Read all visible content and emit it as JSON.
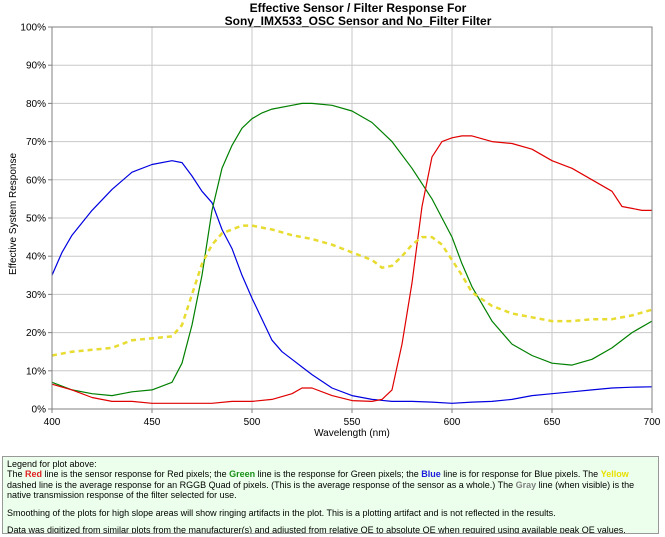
{
  "chart_data": {
    "type": "line",
    "title": [
      "Effective Sensor / Filter Response For",
      "Sony_IMX533_OSC Sensor and No_Filter Filter"
    ],
    "xlabel": "Wavelength (nm)",
    "ylabel": "Effective System Response",
    "xlim": [
      400,
      700
    ],
    "ylim": [
      0,
      100
    ],
    "x_ticks": [
      400,
      450,
      500,
      550,
      600,
      650,
      700
    ],
    "y_ticks": [
      "0%",
      "10%",
      "20%",
      "30%",
      "40%",
      "50%",
      "60%",
      "70%",
      "80%",
      "90%",
      "100%"
    ],
    "grid": true,
    "series": [
      {
        "color": "#0000e0",
        "style": "solid",
        "x": [
          400,
          405,
          410,
          420,
          430,
          440,
          450,
          460,
          465,
          470,
          475,
          480,
          485,
          490,
          495,
          500,
          505,
          510,
          515,
          520,
          525,
          530,
          540,
          550,
          560,
          570,
          580,
          590,
          600,
          610,
          620,
          630,
          640,
          650,
          660,
          670,
          680,
          690,
          700
        ],
        "y": [
          35,
          41,
          45.5,
          52,
          57.5,
          62,
          64,
          65,
          64.5,
          61,
          57,
          54,
          47,
          42,
          35,
          29,
          23.5,
          18,
          15,
          13,
          11,
          9,
          5.5,
          3.5,
          2.5,
          2,
          2,
          1.8,
          1.5,
          1.8,
          2,
          2.5,
          3.5,
          4,
          4.5,
          5,
          5.5,
          5.7,
          5.8
        ]
      },
      {
        "color": "#008000",
        "style": "solid",
        "x": [
          400,
          410,
          420,
          430,
          440,
          450,
          460,
          465,
          470,
          475,
          480,
          485,
          490,
          495,
          500,
          505,
          510,
          520,
          525,
          530,
          540,
          550,
          560,
          570,
          580,
          590,
          600,
          605,
          610,
          620,
          630,
          640,
          650,
          660,
          670,
          680,
          690,
          700
        ],
        "y": [
          7,
          5,
          4,
          3.5,
          4.5,
          5,
          7,
          12,
          22,
          35,
          52,
          63,
          69,
          73.5,
          76,
          77.5,
          78.5,
          79.5,
          80,
          80,
          79.5,
          78,
          75,
          70,
          63,
          55,
          45,
          38,
          32,
          23,
          17,
          14,
          12,
          11.5,
          13,
          16,
          20,
          23
        ]
      },
      {
        "color": "#e00000",
        "style": "solid",
        "x": [
          400,
          410,
          420,
          430,
          440,
          450,
          460,
          470,
          480,
          490,
          500,
          510,
          520,
          525,
          530,
          540,
          550,
          560,
          565,
          570,
          575,
          580,
          585,
          590,
          595,
          600,
          605,
          610,
          620,
          630,
          640,
          650,
          660,
          670,
          680,
          685,
          690,
          695,
          700
        ],
        "y": [
          6.5,
          5,
          3,
          2,
          2,
          1.5,
          1.5,
          1.5,
          1.5,
          2,
          2,
          2.5,
          4,
          5.5,
          5.5,
          3.5,
          2.2,
          2,
          2.5,
          5,
          17,
          33,
          53,
          66,
          70,
          71,
          71.5,
          71.5,
          70,
          69.5,
          68,
          65,
          63,
          60,
          57,
          53,
          52.5,
          52,
          52
        ]
      },
      {
        "color": "#e8dc30",
        "style": "dashed",
        "x": [
          400,
          410,
          420,
          430,
          440,
          450,
          460,
          465,
          470,
          475,
          480,
          485,
          490,
          495,
          500,
          505,
          510,
          520,
          530,
          540,
          550,
          560,
          565,
          570,
          575,
          580,
          585,
          590,
          595,
          600,
          605,
          610,
          620,
          630,
          640,
          650,
          660,
          670,
          680,
          690,
          700
        ],
        "y": [
          14,
          15,
          15.5,
          16,
          18,
          18.5,
          19,
          22,
          30,
          38,
          43,
          46,
          47,
          48,
          48,
          47.5,
          47,
          45.5,
          44.5,
          43,
          41,
          39,
          37,
          37.5,
          40,
          43,
          45,
          45,
          43,
          39,
          35,
          30.5,
          27,
          25,
          24,
          23,
          23,
          23.5,
          23.5,
          24.5,
          26
        ]
      }
    ]
  },
  "legend": {
    "heading": "Legend for plot above:",
    "s1_pre": "The ",
    "s1_red": "Red",
    "s1_mid1": " line is the sensor response for Red pixels; the ",
    "s1_green": "Green",
    "s1_mid2": " line is the response for Green pixels; the ",
    "s1_blue": "Blue",
    "s1_mid3": " line is for response for Blue pixels. The ",
    "s1_yellow": "Yellow",
    "s1_mid4": " dashed line is the average response for an RGGB Quad of pixels. (This is the average response of the sensor as a whole.) The ",
    "s1_gray": "Gray",
    "s1_post": " line (when visible) is the native transmission response of the filter selected for use.",
    "p2": "Smoothing of the plots for high slope areas will show ringing artifacts in the plot. This is a plotting artifact and is not reflected in the results.",
    "p3": "Data was digitized from similar plots from the manufacturer(s) and adjusted from relative QE to absolute QE when required using available peak QE values."
  }
}
